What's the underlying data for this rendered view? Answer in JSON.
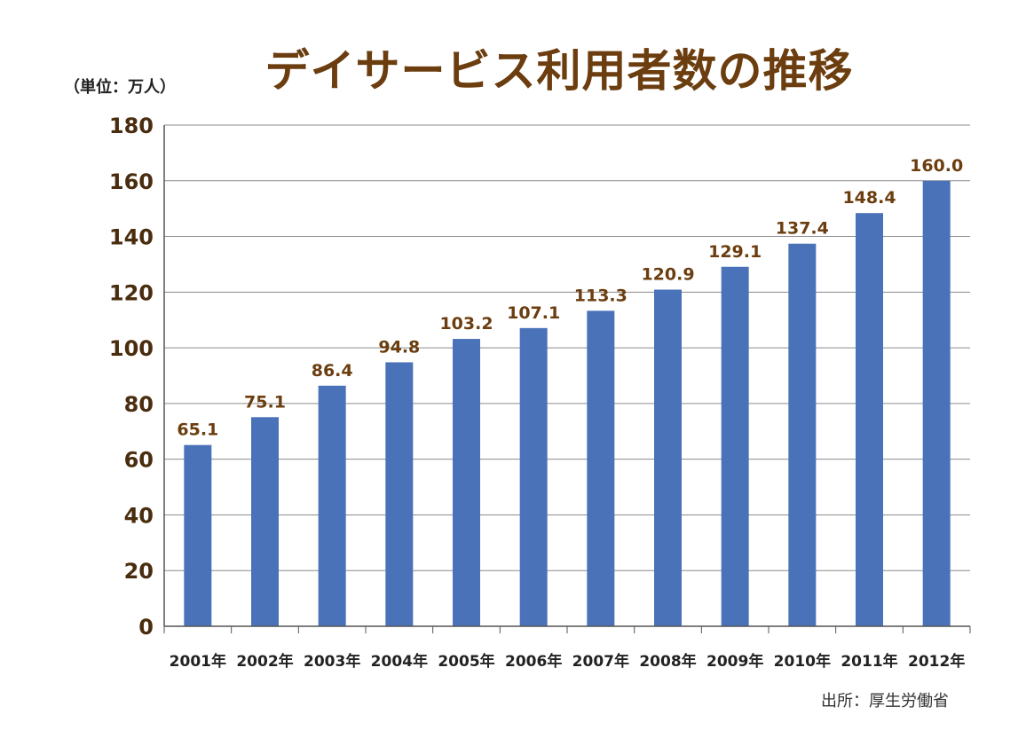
{
  "chart_data": {
    "type": "bar",
    "title": "デイサービス利用者数の推移",
    "unit_label": "（単位：万人）",
    "source": "出所：厚生労働省",
    "categories": [
      "2001年",
      "2002年",
      "2003年",
      "2004年",
      "2005年",
      "2006年",
      "2007年",
      "2008年",
      "2009年",
      "2010年",
      "2011年",
      "2012年"
    ],
    "values": [
      65.1,
      75.1,
      86.4,
      94.8,
      103.2,
      107.1,
      113.3,
      120.9,
      129.1,
      137.4,
      148.4,
      160.0
    ],
    "value_labels": [
      "65.1",
      "75.1",
      "86.4",
      "94.8",
      "103.2",
      "107.1",
      "113.3",
      "120.9",
      "129.1",
      "137.4",
      "148.4",
      "160.0"
    ],
    "ylim": [
      0,
      180
    ],
    "yticks": [
      "0",
      "20",
      "40",
      "60",
      "80",
      "100",
      "120",
      "140",
      "160",
      "180"
    ],
    "grid": true,
    "legend": "none",
    "colors": {
      "bar": "#4a72b8",
      "title": "#6b3d0f",
      "grid": "#8c8c8c"
    }
  }
}
